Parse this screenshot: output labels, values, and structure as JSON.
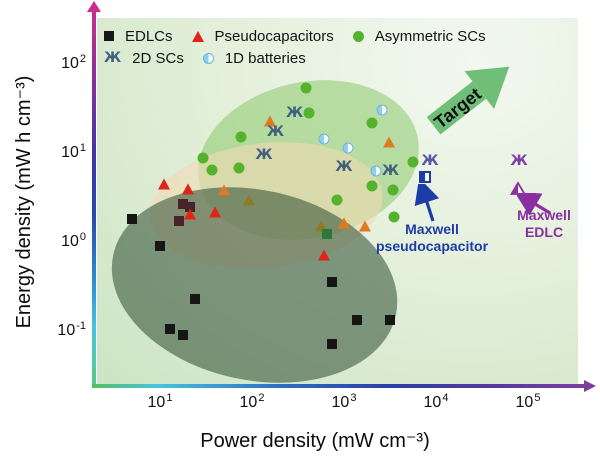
{
  "legend": {
    "rows": [
      [
        {
          "label": "EDLCs",
          "marker": "square",
          "color": "#161616"
        },
        {
          "label": "Pseudocapacitors",
          "marker": "triangle",
          "color": "#e02417"
        },
        {
          "label": "Asymmetric SCs",
          "marker": "circle",
          "color": "#55b22d"
        }
      ],
      [
        {
          "label": "2D SCs",
          "marker": "zhe",
          "color": "#41607e"
        },
        {
          "label": "1D batteries",
          "marker": "half-circle",
          "color": "#8ed0ec"
        }
      ]
    ]
  },
  "chart_data": {
    "type": "scatter",
    "xlabel": "Power density (mW cm⁻³)",
    "ylabel": "Energy density (mW h cm⁻³)",
    "x_scale": "log",
    "y_scale": "log",
    "x_tick_exponents": [
      1,
      2,
      3,
      4,
      5
    ],
    "y_tick_exponents": [
      2,
      1,
      0,
      -1
    ],
    "xlim_exponents": [
      0.2,
      5.6
    ],
    "ylim_exponents": [
      -1.6,
      2.6
    ],
    "grid": false,
    "series": [
      {
        "name": "EDLCs",
        "marker": "square",
        "color": "#161616",
        "points": [
          {
            "p": 5,
            "e": 1.9
          },
          {
            "p": 10,
            "e": 0.95
          },
          {
            "p": 13,
            "e": 0.11
          },
          {
            "p": 18,
            "e": 0.095
          },
          {
            "p": 24,
            "e": 0.24
          },
          {
            "p": 740,
            "e": 0.37
          },
          {
            "p": 1400,
            "e": 0.14
          },
          {
            "p": 3200,
            "e": 0.14
          },
          {
            "p": 740,
            "e": 0.075
          },
          {
            "p": 18,
            "e": 2.8,
            "color": "#46242a"
          },
          {
            "p": 21,
            "e": 2.6,
            "color": "#46242a"
          },
          {
            "p": 16,
            "e": 1.8,
            "color": "#46242a"
          }
        ]
      },
      {
        "name": "Pseudocapacitors",
        "marker": "triangle",
        "color": "#e02417",
        "points": [
          {
            "p": 11,
            "e": 4.7
          },
          {
            "p": 20,
            "e": 4.2
          },
          {
            "p": 21,
            "e": 2.2
          },
          {
            "p": 40,
            "e": 2.3
          },
          {
            "p": 600,
            "e": 0.75
          },
          {
            "p": 50,
            "e": 4.0,
            "color": "#df7a20"
          },
          {
            "p": 155,
            "e": 24,
            "color": "#df7a20"
          },
          {
            "p": 3100,
            "e": 14,
            "color": "#df7a20"
          },
          {
            "p": 1000,
            "e": 1.7,
            "color": "#df7a20"
          },
          {
            "p": 1700,
            "e": 1.6,
            "color": "#df7a20"
          },
          {
            "p": 93,
            "e": 3.1,
            "color": "#8f7a23"
          },
          {
            "p": 560,
            "e": 1.6,
            "color": "#8f7a23"
          }
        ]
      },
      {
        "name": "Asymmetric SCs",
        "marker": "circle",
        "color": "#55b22d",
        "points": [
          {
            "p": 390,
            "e": 57
          },
          {
            "p": 420,
            "e": 30
          },
          {
            "p": 2000,
            "e": 23
          },
          {
            "p": 76,
            "e": 16
          },
          {
            "p": 29,
            "e": 9.2
          },
          {
            "p": 37,
            "e": 6.8
          },
          {
            "p": 72,
            "e": 7.1
          },
          {
            "p": 5600,
            "e": 8.3
          },
          {
            "p": 2000,
            "e": 4.5
          },
          {
            "p": 3400,
            "e": 4.0
          },
          {
            "p": 830,
            "e": 3.1
          },
          {
            "p": 3500,
            "e": 2.0
          },
          {
            "p": 650,
            "e": 1.3,
            "marker": "square",
            "color": "#2c7a36"
          }
        ]
      },
      {
        "name": "2D SCs",
        "marker": "zhe",
        "color": "#41607e",
        "points": [
          {
            "p": 290,
            "e": 30
          },
          {
            "p": 180,
            "e": 18
          },
          {
            "p": 135,
            "e": 10
          },
          {
            "p": 1000,
            "e": 7.3
          },
          {
            "p": 3200,
            "e": 6.6
          },
          {
            "p": 8600,
            "e": 8.5,
            "color": "#5c55a6"
          },
          {
            "p": 80000,
            "e": 8.5,
            "color": "#7d3fa8"
          }
        ]
      },
      {
        "name": "1D batteries",
        "marker": "half-circle",
        "color": "#8ed0ec",
        "points": [
          {
            "p": 2600,
            "e": 32
          },
          {
            "p": 600,
            "e": 15
          },
          {
            "p": 1100,
            "e": 12
          },
          {
            "p": 2250,
            "e": 6.6
          }
        ]
      }
    ],
    "regions": [
      {
        "name": "asymmetric-scs-region",
        "p_center": 412,
        "e_center": 8.8,
        "p_decades": 2.42,
        "e_decades": 1.75,
        "rotation_deg": -12,
        "fill": "rgba(141,201,107,0.55)"
      },
      {
        "name": "pseudocapacitors-region",
        "p_center": 143,
        "e_center": 2.7,
        "p_decades": 2.53,
        "e_decades": 1.41,
        "rotation_deg": -6,
        "fill": "rgba(241,219,181,0.6)"
      },
      {
        "name": "edlcs-region",
        "p_center": 105,
        "e_center": 0.34,
        "p_decades": 3.14,
        "e_decades": 2.14,
        "rotation_deg": 12,
        "fill": "rgba(44,74,50,0.55)"
      }
    ],
    "annotations": {
      "target": {
        "label": "Target",
        "color": "#6fbf78"
      },
      "maxwell_pseudocapacitor": {
        "line1": "Maxwell",
        "line2": "pseudocapacitor",
        "color": "#1e3ca8",
        "marker": "half-square",
        "p": 7600,
        "e": 5.6
      },
      "maxwell_edlc": {
        "line1": "Maxwell",
        "line2": "EDLC",
        "color": "#8b2fa0",
        "marker": "half-triangle",
        "p": 78000,
        "e": 3.9
      }
    }
  }
}
